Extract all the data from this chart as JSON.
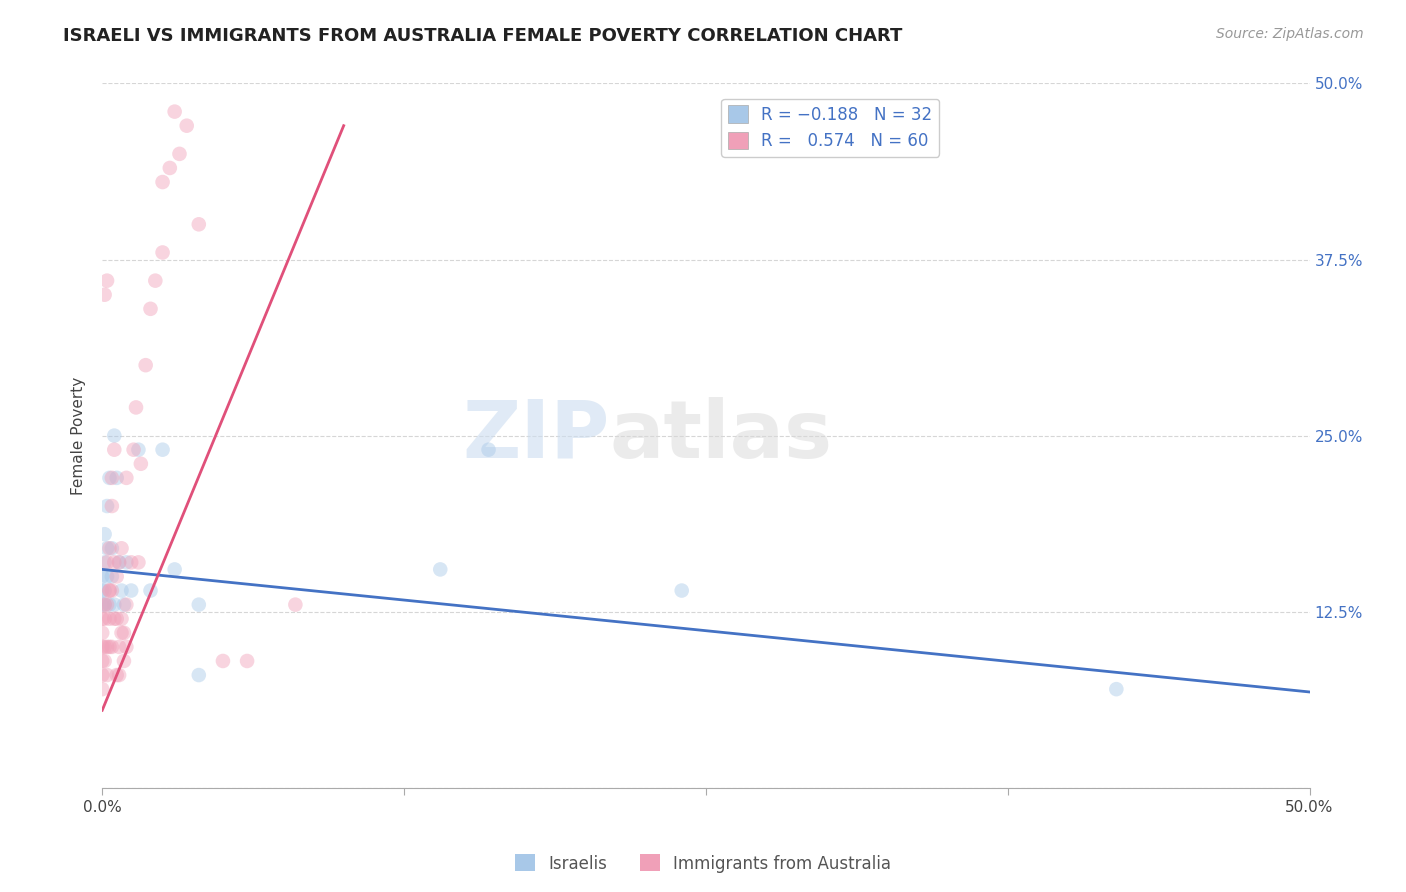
{
  "title": "ISRAELI VS IMMIGRANTS FROM AUSTRALIA FEMALE POVERTY CORRELATION CHART",
  "source": "Source: ZipAtlas.com",
  "ylabel": "Female Poverty",
  "watermark_zip": "ZIP",
  "watermark_atlas": "atlas",
  "xlim": [
    0.0,
    0.5
  ],
  "ylim": [
    0.0,
    0.5
  ],
  "yticks": [
    0.0,
    0.125,
    0.25,
    0.375,
    0.5
  ],
  "ytick_labels": [
    "",
    "12.5%",
    "25.0%",
    "37.5%",
    "50.0%"
  ],
  "xticks": [
    0.0,
    0.125,
    0.25,
    0.375,
    0.5
  ],
  "color_israeli": "#a8c8e8",
  "color_australia": "#f0a0b8",
  "line_color_israeli": "#4472c4",
  "line_color_australia": "#e0507a",
  "israeli_x": [
    0.0,
    0.0,
    0.0,
    0.001,
    0.001,
    0.001,
    0.001,
    0.002,
    0.002,
    0.002,
    0.003,
    0.003,
    0.004,
    0.004,
    0.005,
    0.005,
    0.006,
    0.007,
    0.008,
    0.009,
    0.01,
    0.012,
    0.015,
    0.02,
    0.025,
    0.03,
    0.04,
    0.04,
    0.14,
    0.16,
    0.42,
    0.24
  ],
  "israeli_y": [
    0.14,
    0.13,
    0.15,
    0.16,
    0.18,
    0.14,
    0.13,
    0.2,
    0.15,
    0.17,
    0.13,
    0.22,
    0.15,
    0.17,
    0.13,
    0.25,
    0.22,
    0.16,
    0.14,
    0.13,
    0.16,
    0.14,
    0.24,
    0.14,
    0.24,
    0.155,
    0.13,
    0.08,
    0.155,
    0.24,
    0.07,
    0.14
  ],
  "australian_x": [
    0.0,
    0.0,
    0.0,
    0.0,
    0.0,
    0.0,
    0.001,
    0.001,
    0.001,
    0.001,
    0.002,
    0.002,
    0.002,
    0.002,
    0.003,
    0.003,
    0.003,
    0.003,
    0.004,
    0.004,
    0.004,
    0.005,
    0.005,
    0.006,
    0.006,
    0.007,
    0.007,
    0.008,
    0.008,
    0.009,
    0.01,
    0.01,
    0.012,
    0.013,
    0.014,
    0.015,
    0.016,
    0.018,
    0.02,
    0.022,
    0.025,
    0.025,
    0.028,
    0.03,
    0.032,
    0.035,
    0.04,
    0.05,
    0.06,
    0.08,
    0.001,
    0.002,
    0.003,
    0.004,
    0.005,
    0.006,
    0.007,
    0.008,
    0.009,
    0.01
  ],
  "australian_y": [
    0.08,
    0.1,
    0.12,
    0.07,
    0.09,
    0.11,
    0.09,
    0.1,
    0.12,
    0.13,
    0.08,
    0.1,
    0.13,
    0.16,
    0.1,
    0.12,
    0.14,
    0.17,
    0.1,
    0.14,
    0.22,
    0.12,
    0.16,
    0.12,
    0.15,
    0.1,
    0.16,
    0.12,
    0.17,
    0.11,
    0.13,
    0.22,
    0.16,
    0.24,
    0.27,
    0.16,
    0.23,
    0.3,
    0.34,
    0.36,
    0.38,
    0.43,
    0.44,
    0.48,
    0.45,
    0.47,
    0.4,
    0.09,
    0.09,
    0.13,
    0.35,
    0.36,
    0.14,
    0.2,
    0.24,
    0.08,
    0.08,
    0.11,
    0.09,
    0.1
  ],
  "israeli_line_x": [
    0.0,
    0.5
  ],
  "israeli_line_y": [
    0.155,
    0.068
  ],
  "australian_line_x": [
    0.0,
    0.1
  ],
  "australian_line_y": [
    0.055,
    0.47
  ],
  "marker_size": 110,
  "alpha": 0.45,
  "figsize": [
    14.06,
    8.92
  ],
  "dpi": 100
}
